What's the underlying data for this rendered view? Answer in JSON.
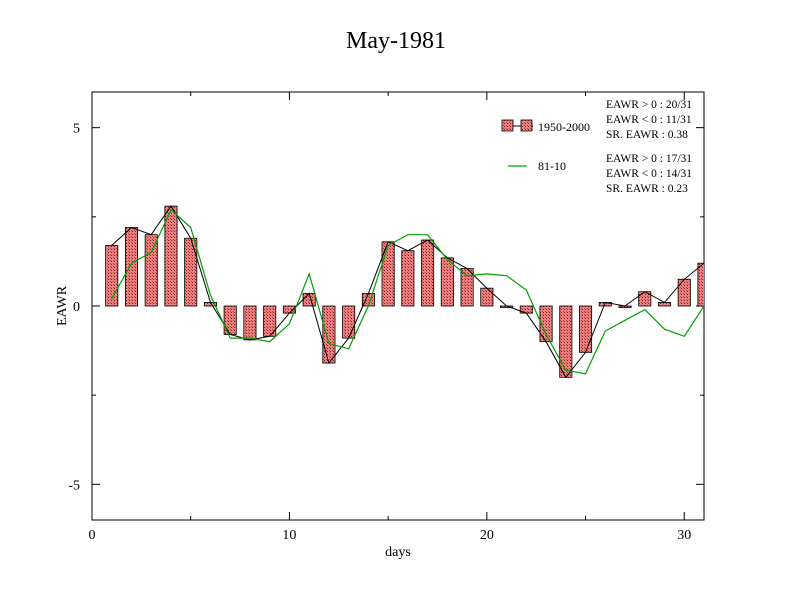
{
  "chart_data": {
    "type": "bar",
    "title": "May-1981",
    "xlabel": "days",
    "ylabel": "EAWR",
    "xlim": [
      0,
      31
    ],
    "ylim": [
      -6,
      6
    ],
    "x_ticks": [
      0,
      10,
      20,
      30
    ],
    "y_ticks": [
      -5,
      0,
      5
    ],
    "grid": false,
    "legend_position": "top-right",
    "x": [
      1,
      2,
      3,
      4,
      5,
      6,
      7,
      8,
      9,
      10,
      11,
      12,
      13,
      14,
      15,
      16,
      17,
      18,
      19,
      20,
      21,
      22,
      23,
      24,
      25,
      26,
      27,
      28,
      29,
      30,
      31
    ],
    "series": [
      {
        "name": "1950-2000",
        "kind": "bar",
        "color": "#f08080",
        "values": [
          1.7,
          2.2,
          2.0,
          2.8,
          1.9,
          0.1,
          -0.8,
          -0.95,
          -0.85,
          -0.2,
          0.35,
          -1.6,
          -0.9,
          0.35,
          1.8,
          1.55,
          1.85,
          1.35,
          1.05,
          0.5,
          0.0,
          -0.2,
          -1.0,
          -2.0,
          -1.3,
          0.1,
          0.0,
          0.4,
          0.1,
          0.75,
          1.2
        ]
      },
      {
        "name": "81-10",
        "kind": "line",
        "color": "#00a000",
        "values": [
          0.2,
          1.2,
          1.5,
          2.7,
          2.2,
          0.3,
          -0.9,
          -0.9,
          -1.0,
          -0.5,
          0.9,
          -1.05,
          -1.2,
          0.0,
          1.7,
          2.0,
          2.0,
          1.3,
          0.85,
          0.9,
          0.85,
          0.45,
          -0.8,
          -1.8,
          -1.9,
          -0.7,
          -0.4,
          -0.1,
          -0.65,
          -0.85,
          0.0
        ]
      }
    ],
    "legend": {
      "bar_label": "1950-2000",
      "line_label": "81-10"
    },
    "stats_1950": [
      "EAWR > 0 : 20/31",
      "EAWR < 0 : 11/31",
      "SR. EAWR :  0.38"
    ],
    "stats_8110": [
      "EAWR > 0 : 17/31",
      "EAWR < 0 : 14/31",
      "SR. EAWR :  0.23"
    ]
  }
}
